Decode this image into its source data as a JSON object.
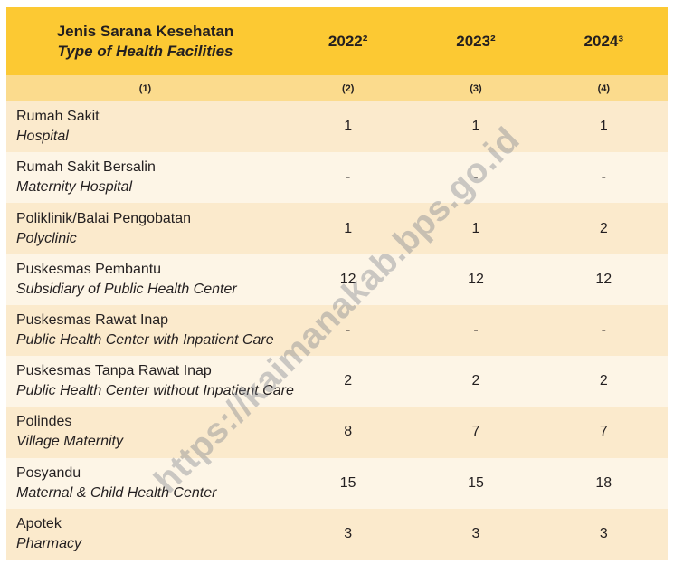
{
  "colors": {
    "header_bg": "#FCC933",
    "subheader_bg": "#FBDB8D",
    "row_odd_bg": "#FBEACC",
    "row_even_bg": "#FDF5E6",
    "text": "#231F20",
    "watermark": "rgba(125,130,140,0.4)"
  },
  "watermark_text": "https://kaimanakab.bps.go.id",
  "table": {
    "header": {
      "col1_line1": "Jenis Sarana Kesehatan",
      "col1_line2": "Type of Health Facilities",
      "years": [
        "2022²",
        "2023²",
        "2024³"
      ]
    },
    "subheader": [
      "(1)",
      "(2)",
      "(3)",
      "(4)"
    ],
    "rows": [
      {
        "name_id": "Rumah Sakit",
        "name_en": "Hospital",
        "v2022": "1",
        "v2023": "1",
        "v2024": "1"
      },
      {
        "name_id": "Rumah Sakit Bersalin",
        "name_en": "Maternity Hospital",
        "v2022": "-",
        "v2023": "-",
        "v2024": "-"
      },
      {
        "name_id": "Poliklinik/Balai Pengobatan",
        "name_en": "Polyclinic",
        "v2022": "1",
        "v2023": "1",
        "v2024": "2"
      },
      {
        "name_id": "Puskesmas Pembantu",
        "name_en": "Subsidiary of Public Health Center",
        "v2022": "12",
        "v2023": "12",
        "v2024": "12"
      },
      {
        "name_id": "Puskesmas Rawat Inap",
        "name_en": "Public Health Center with Inpatient Care",
        "v2022": "-",
        "v2023": "-",
        "v2024": "-"
      },
      {
        "name_id": "Puskesmas Tanpa Rawat Inap",
        "name_en": "Public Health Center without Inpatient Care",
        "v2022": "2",
        "v2023": "2",
        "v2024": "2"
      },
      {
        "name_id": "Polindes",
        "name_en": "Village Maternity",
        "v2022": "8",
        "v2023": "7",
        "v2024": "7"
      },
      {
        "name_id": "Posyandu",
        "name_en": "Maternal & Child Health Center",
        "v2022": "15",
        "v2023": "15",
        "v2024": "18"
      },
      {
        "name_id": "Apotek",
        "name_en": "Pharmacy",
        "v2022": "3",
        "v2023": "3",
        "v2024": "3"
      }
    ]
  },
  "chart_data": {
    "type": "table",
    "title": "Jenis Sarana Kesehatan / Type of Health Facilities",
    "columns": [
      "Jenis Sarana Kesehatan / Type of Health Facilities",
      "2022²",
      "2023²",
      "2024³"
    ],
    "column_index_labels": [
      "(1)",
      "(2)",
      "(3)",
      "(4)"
    ],
    "rows": [
      [
        "Rumah Sakit / Hospital",
        "1",
        "1",
        "1"
      ],
      [
        "Rumah Sakit Bersalin / Maternity Hospital",
        "-",
        "-",
        "-"
      ],
      [
        "Poliklinik/Balai Pengobatan / Polyclinic",
        "1",
        "1",
        "2"
      ],
      [
        "Puskesmas Pembantu / Subsidiary of Public Health Center",
        "12",
        "12",
        "12"
      ],
      [
        "Puskesmas Rawat Inap / Public Health Center with Inpatient Care",
        "-",
        "-",
        "-"
      ],
      [
        "Puskesmas Tanpa Rawat Inap / Public Health Center without Inpatient Care",
        "2",
        "2",
        "2"
      ],
      [
        "Polindes / Village Maternity",
        "8",
        "7",
        "7"
      ],
      [
        "Posyandu / Maternal & Child Health Center",
        "15",
        "15",
        "18"
      ],
      [
        "Apotek / Pharmacy",
        "3",
        "3",
        "3"
      ]
    ]
  }
}
